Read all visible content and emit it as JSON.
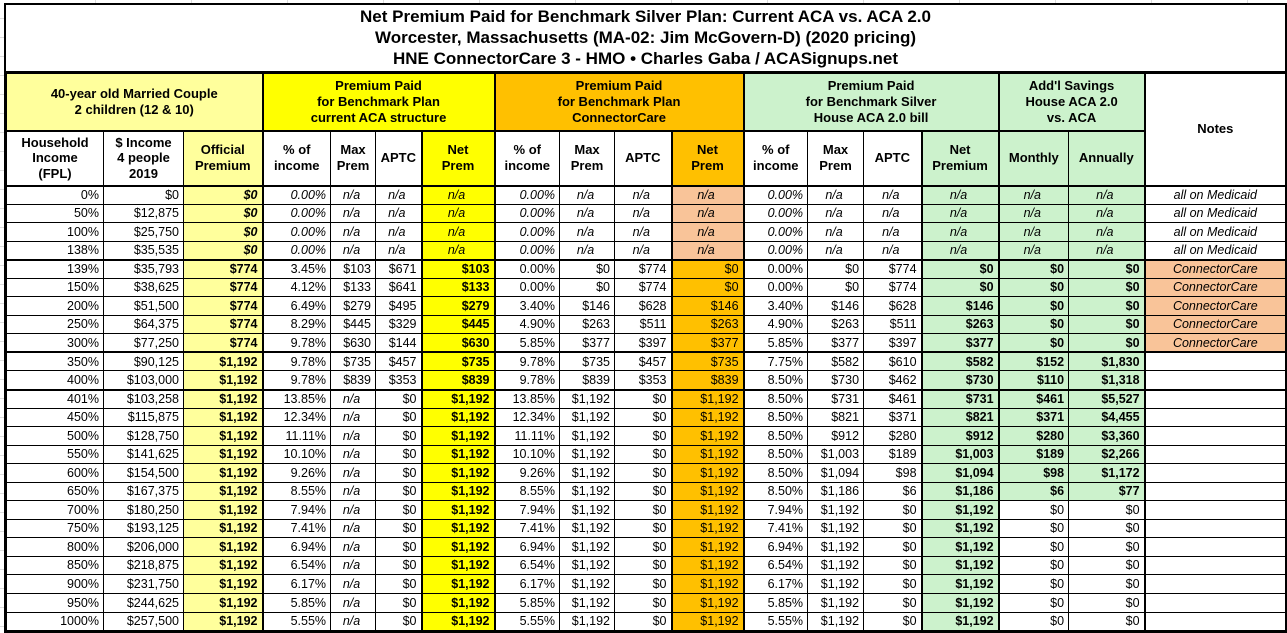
{
  "title": {
    "line1": "Net Premium Paid for Benchmark Silver Plan: Current ACA vs. ACA 2.0",
    "line2": "Worcester, Massachusetts (MA-02: Jim McGovern-D) (2020 pricing)",
    "line3": "HNE ConnectorCare 3 - HMO • Charles Gaba / ACASignups.net"
  },
  "colors": {
    "light_yellow": "#FFFF9C",
    "bright_yellow": "#FFFF00",
    "gold": "#FFC000",
    "peach": "#F9C499",
    "mint_green": "#CCF2CC",
    "border": "#000000"
  },
  "chart_data": {
    "type": "table",
    "title": "Net Premium Paid for Benchmark Silver Plan: Current ACA vs. ACA 2.0",
    "groups": {
      "household": "40-year old Married Couple\n2 children (12 & 10)",
      "aca": "Premium Paid\nfor Benchmark Plan\ncurrent ACA structure",
      "connectorcare": "Premium Paid\nfor Benchmark Plan\nConnectorCare",
      "house_bill": "Premium Paid\nfor Benchmark Silver\nHouse ACA 2.0 bill",
      "savings": "Add'l Savings\nHouse ACA 2.0\nvs. ACA",
      "notes": "Notes"
    },
    "columns": [
      "Household\nIncome\n(FPL)",
      "$ Income\n4 people\n2019",
      "Official\nPremium",
      "% of\nincome",
      "Max\nPrem",
      "APTC",
      "Net\nPrem",
      "% of\nincome",
      "Max\nPrem",
      "APTC",
      "Net\nPrem",
      "% of\nincome",
      "Max\nPrem",
      "APTC",
      "Net\nPremium",
      "Monthly",
      "Annually",
      "Notes"
    ],
    "rows": [
      {
        "fpl": "0%",
        "income": "$0",
        "official": "$0",
        "aca": [
          "0.00%",
          "n/a",
          "n/a",
          "n/a"
        ],
        "cc": [
          "0.00%",
          "n/a",
          "n/a",
          "n/a"
        ],
        "house": [
          "0.00%",
          "n/a",
          "n/a",
          "n/a"
        ],
        "monthly": "n/a",
        "annually": "n/a",
        "notes": "all on Medicaid",
        "cls": "medicaid",
        "sep": false
      },
      {
        "fpl": "50%",
        "income": "$12,875",
        "official": "$0",
        "aca": [
          "0.00%",
          "n/a",
          "n/a",
          "n/a"
        ],
        "cc": [
          "0.00%",
          "n/a",
          "n/a",
          "n/a"
        ],
        "house": [
          "0.00%",
          "n/a",
          "n/a",
          "n/a"
        ],
        "monthly": "n/a",
        "annually": "n/a",
        "notes": "all on Medicaid",
        "cls": "medicaid",
        "sep": false
      },
      {
        "fpl": "100%",
        "income": "$25,750",
        "official": "$0",
        "aca": [
          "0.00%",
          "n/a",
          "n/a",
          "n/a"
        ],
        "cc": [
          "0.00%",
          "n/a",
          "n/a",
          "n/a"
        ],
        "house": [
          "0.00%",
          "n/a",
          "n/a",
          "n/a"
        ],
        "monthly": "n/a",
        "annually": "n/a",
        "notes": "all on Medicaid",
        "cls": "medicaid",
        "sep": false
      },
      {
        "fpl": "138%",
        "income": "$35,535",
        "official": "$0",
        "aca": [
          "0.00%",
          "n/a",
          "n/a",
          "n/a"
        ],
        "cc": [
          "0.00%",
          "n/a",
          "n/a",
          "n/a"
        ],
        "house": [
          "0.00%",
          "n/a",
          "n/a",
          "n/a"
        ],
        "monthly": "n/a",
        "annually": "n/a",
        "notes": "all on Medicaid",
        "cls": "medicaid",
        "sep": false
      },
      {
        "fpl": "139%",
        "income": "$35,793",
        "official": "$774",
        "aca": [
          "3.45%",
          "$103",
          "$671",
          "$103"
        ],
        "cc": [
          "0.00%",
          "$0",
          "$774",
          "$0"
        ],
        "house": [
          "0.00%",
          "$0",
          "$774",
          "$0"
        ],
        "monthly": "$0",
        "annually": "$0",
        "notes": "ConnectorCare",
        "cls": "cc",
        "sep": true
      },
      {
        "fpl": "150%",
        "income": "$38,625",
        "official": "$774",
        "aca": [
          "4.12%",
          "$133",
          "$641",
          "$133"
        ],
        "cc": [
          "0.00%",
          "$0",
          "$774",
          "$0"
        ],
        "house": [
          "0.00%",
          "$0",
          "$774",
          "$0"
        ],
        "monthly": "$0",
        "annually": "$0",
        "notes": "ConnectorCare",
        "cls": "cc",
        "sep": false
      },
      {
        "fpl": "200%",
        "income": "$51,500",
        "official": "$774",
        "aca": [
          "6.49%",
          "$279",
          "$495",
          "$279"
        ],
        "cc": [
          "3.40%",
          "$146",
          "$628",
          "$146"
        ],
        "house": [
          "3.40%",
          "$146",
          "$628",
          "$146"
        ],
        "monthly": "$0",
        "annually": "$0",
        "notes": "ConnectorCare",
        "cls": "cc",
        "sep": false
      },
      {
        "fpl": "250%",
        "income": "$64,375",
        "official": "$774",
        "aca": [
          "8.29%",
          "$445",
          "$329",
          "$445"
        ],
        "cc": [
          "4.90%",
          "$263",
          "$511",
          "$263"
        ],
        "house": [
          "4.90%",
          "$263",
          "$511",
          "$263"
        ],
        "monthly": "$0",
        "annually": "$0",
        "notes": "ConnectorCare",
        "cls": "cc",
        "sep": false
      },
      {
        "fpl": "300%",
        "income": "$77,250",
        "official": "$774",
        "aca": [
          "9.78%",
          "$630",
          "$144",
          "$630"
        ],
        "cc": [
          "5.85%",
          "$377",
          "$397",
          "$377"
        ],
        "house": [
          "5.85%",
          "$377",
          "$397",
          "$377"
        ],
        "monthly": "$0",
        "annually": "$0",
        "notes": "ConnectorCare",
        "cls": "cc",
        "sep": false
      },
      {
        "fpl": "350%",
        "income": "$90,125",
        "official": "$1,192",
        "aca": [
          "9.78%",
          "$735",
          "$457",
          "$735"
        ],
        "cc": [
          "9.78%",
          "$735",
          "$457",
          "$735"
        ],
        "house": [
          "7.75%",
          "$582",
          "$610",
          "$582"
        ],
        "monthly": "$152",
        "annually": "$1,830",
        "notes": "",
        "cls": "mid",
        "sep": true
      },
      {
        "fpl": "400%",
        "income": "$103,000",
        "official": "$1,192",
        "aca": [
          "9.78%",
          "$839",
          "$353",
          "$839"
        ],
        "cc": [
          "9.78%",
          "$839",
          "$353",
          "$839"
        ],
        "house": [
          "8.50%",
          "$730",
          "$462",
          "$730"
        ],
        "monthly": "$110",
        "annually": "$1,318",
        "notes": "",
        "cls": "mid",
        "sep": false
      },
      {
        "fpl": "401%",
        "income": "$103,258",
        "official": "$1,192",
        "aca": [
          "13.85%",
          "n/a",
          "$0",
          "$1,192"
        ],
        "cc": [
          "13.85%",
          "$1,192",
          "$0",
          "$1,192"
        ],
        "house": [
          "8.50%",
          "$731",
          "$461",
          "$731"
        ],
        "monthly": "$461",
        "annually": "$5,527",
        "notes": "",
        "cls": "mid",
        "sep": true
      },
      {
        "fpl": "450%",
        "income": "$115,875",
        "official": "$1,192",
        "aca": [
          "12.34%",
          "n/a",
          "$0",
          "$1,192"
        ],
        "cc": [
          "12.34%",
          "$1,192",
          "$0",
          "$1,192"
        ],
        "house": [
          "8.50%",
          "$821",
          "$371",
          "$821"
        ],
        "monthly": "$371",
        "annually": "$4,455",
        "notes": "",
        "cls": "mid",
        "sep": false
      },
      {
        "fpl": "500%",
        "income": "$128,750",
        "official": "$1,192",
        "aca": [
          "11.11%",
          "n/a",
          "$0",
          "$1,192"
        ],
        "cc": [
          "11.11%",
          "$1,192",
          "$0",
          "$1,192"
        ],
        "house": [
          "8.50%",
          "$912",
          "$280",
          "$912"
        ],
        "monthly": "$280",
        "annually": "$3,360",
        "notes": "",
        "cls": "mid",
        "sep": false
      },
      {
        "fpl": "550%",
        "income": "$141,625",
        "official": "$1,192",
        "aca": [
          "10.10%",
          "n/a",
          "$0",
          "$1,192"
        ],
        "cc": [
          "10.10%",
          "$1,192",
          "$0",
          "$1,192"
        ],
        "house": [
          "8.50%",
          "$1,003",
          "$189",
          "$1,003"
        ],
        "monthly": "$189",
        "annually": "$2,266",
        "notes": "",
        "cls": "mid",
        "sep": false
      },
      {
        "fpl": "600%",
        "income": "$154,500",
        "official": "$1,192",
        "aca": [
          "9.26%",
          "n/a",
          "$0",
          "$1,192"
        ],
        "cc": [
          "9.26%",
          "$1,192",
          "$0",
          "$1,192"
        ],
        "house": [
          "8.50%",
          "$1,094",
          "$98",
          "$1,094"
        ],
        "monthly": "$98",
        "annually": "$1,172",
        "notes": "",
        "cls": "mid",
        "sep": false
      },
      {
        "fpl": "650%",
        "income": "$167,375",
        "official": "$1,192",
        "aca": [
          "8.55%",
          "n/a",
          "$0",
          "$1,192"
        ],
        "cc": [
          "8.55%",
          "$1,192",
          "$0",
          "$1,192"
        ],
        "house": [
          "8.50%",
          "$1,186",
          "$6",
          "$1,186"
        ],
        "monthly": "$6",
        "annually": "$77",
        "notes": "",
        "cls": "mid",
        "sep": false
      },
      {
        "fpl": "700%",
        "income": "$180,250",
        "official": "$1,192",
        "aca": [
          "7.94%",
          "n/a",
          "$0",
          "$1,192"
        ],
        "cc": [
          "7.94%",
          "$1,192",
          "$0",
          "$1,192"
        ],
        "house": [
          "7.94%",
          "$1,192",
          "$0",
          "$1,192"
        ],
        "monthly": "$0",
        "annually": "$0",
        "notes": "",
        "cls": "flat",
        "sep": false
      },
      {
        "fpl": "750%",
        "income": "$193,125",
        "official": "$1,192",
        "aca": [
          "7.41%",
          "n/a",
          "$0",
          "$1,192"
        ],
        "cc": [
          "7.41%",
          "$1,192",
          "$0",
          "$1,192"
        ],
        "house": [
          "7.41%",
          "$1,192",
          "$0",
          "$1,192"
        ],
        "monthly": "$0",
        "annually": "$0",
        "notes": "",
        "cls": "flat",
        "sep": false
      },
      {
        "fpl": "800%",
        "income": "$206,000",
        "official": "$1,192",
        "aca": [
          "6.94%",
          "n/a",
          "$0",
          "$1,192"
        ],
        "cc": [
          "6.94%",
          "$1,192",
          "$0",
          "$1,192"
        ],
        "house": [
          "6.94%",
          "$1,192",
          "$0",
          "$1,192"
        ],
        "monthly": "$0",
        "annually": "$0",
        "notes": "",
        "cls": "flat",
        "sep": false
      },
      {
        "fpl": "850%",
        "income": "$218,875",
        "official": "$1,192",
        "aca": [
          "6.54%",
          "n/a",
          "$0",
          "$1,192"
        ],
        "cc": [
          "6.54%",
          "$1,192",
          "$0",
          "$1,192"
        ],
        "house": [
          "6.54%",
          "$1,192",
          "$0",
          "$1,192"
        ],
        "monthly": "$0",
        "annually": "$0",
        "notes": "",
        "cls": "flat",
        "sep": false
      },
      {
        "fpl": "900%",
        "income": "$231,750",
        "official": "$1,192",
        "aca": [
          "6.17%",
          "n/a",
          "$0",
          "$1,192"
        ],
        "cc": [
          "6.17%",
          "$1,192",
          "$0",
          "$1,192"
        ],
        "house": [
          "6.17%",
          "$1,192",
          "$0",
          "$1,192"
        ],
        "monthly": "$0",
        "annually": "$0",
        "notes": "",
        "cls": "flat",
        "sep": false
      },
      {
        "fpl": "950%",
        "income": "$244,625",
        "official": "$1,192",
        "aca": [
          "5.85%",
          "n/a",
          "$0",
          "$1,192"
        ],
        "cc": [
          "5.85%",
          "$1,192",
          "$0",
          "$1,192"
        ],
        "house": [
          "5.85%",
          "$1,192",
          "$0",
          "$1,192"
        ],
        "monthly": "$0",
        "annually": "$0",
        "notes": "",
        "cls": "flat",
        "sep": false
      },
      {
        "fpl": "1000%",
        "income": "$257,500",
        "official": "$1,192",
        "aca": [
          "5.55%",
          "n/a",
          "$0",
          "$1,192"
        ],
        "cc": [
          "5.55%",
          "$1,192",
          "$0",
          "$1,192"
        ],
        "house": [
          "5.55%",
          "$1,192",
          "$0",
          "$1,192"
        ],
        "monthly": "$0",
        "annually": "$0",
        "notes": "",
        "cls": "flat",
        "sep": false
      }
    ]
  }
}
